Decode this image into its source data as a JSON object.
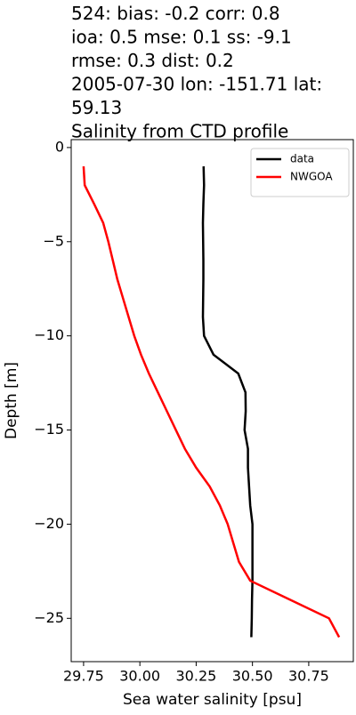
{
  "chart_data": {
    "type": "line",
    "title": [
      "524: bias: -0.2  corr: 0.8",
      "ioa: 0.5  mse: 0.1  ss: -9.1",
      "rmse: 0.3  dist: 0.2",
      "2005-07-30 lon: -151.71 lat:",
      "59.13",
      "Salinity from CTD profile"
    ],
    "x_label": "Sea water salinity [psu]",
    "y_label": "Depth [m]",
    "y": [
      -1,
      -2,
      -3,
      -4,
      -5,
      -6,
      -7,
      -8,
      -9,
      -10,
      -11,
      -12,
      -13,
      -14,
      -15,
      -16,
      -17,
      -18,
      -19,
      -20,
      -21,
      -22,
      -23,
      -24,
      -25,
      -26
    ],
    "series": [
      {
        "name": "data",
        "color": "#000000",
        "values": [
          30.283,
          30.285,
          30.282,
          30.28,
          30.281,
          30.282,
          30.282,
          30.281,
          30.28,
          30.285,
          30.327,
          30.437,
          30.469,
          30.47,
          30.465,
          30.48,
          30.48,
          30.485,
          30.49,
          30.5,
          30.5,
          30.5,
          30.5,
          30.498,
          30.497,
          30.495
        ]
      },
      {
        "name": "NWGOA",
        "color": "#ff0000",
        "values": [
          29.75,
          29.755,
          29.797,
          29.837,
          29.86,
          29.88,
          29.9,
          29.925,
          29.95,
          29.975,
          30.005,
          30.04,
          30.08,
          30.12,
          30.16,
          30.2,
          30.25,
          30.31,
          30.355,
          30.39,
          30.415,
          30.44,
          30.49,
          30.665,
          30.84,
          30.885
        ]
      }
    ],
    "xlim": [
      29.695,
      30.948
    ],
    "ylim": [
      -27.3,
      0.42
    ],
    "xticks": [
      {
        "value": 29.75,
        "label": "29.75"
      },
      {
        "value": 30.0,
        "label": "30.00"
      },
      {
        "value": 30.25,
        "label": "30.25"
      },
      {
        "value": 30.5,
        "label": "30.50"
      },
      {
        "value": 30.75,
        "label": "30.75"
      }
    ],
    "yticks": [
      0,
      {
        "value": -5,
        "label": "−5"
      },
      {
        "value": -10,
        "label": "−10"
      },
      {
        "value": -15,
        "label": "−15"
      },
      {
        "value": -20,
        "label": "−20"
      },
      {
        "value": -25,
        "label": "−25"
      }
    ],
    "legend": "upper right"
  }
}
